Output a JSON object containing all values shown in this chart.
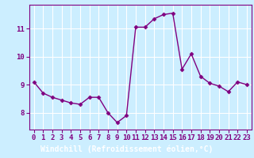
{
  "x": [
    0,
    1,
    2,
    3,
    4,
    5,
    6,
    7,
    8,
    9,
    10,
    11,
    12,
    13,
    14,
    15,
    16,
    17,
    18,
    19,
    20,
    21,
    22,
    23
  ],
  "y": [
    9.1,
    8.7,
    8.55,
    8.45,
    8.35,
    8.3,
    8.55,
    8.55,
    8.0,
    7.65,
    7.9,
    11.05,
    11.05,
    11.35,
    11.5,
    11.55,
    9.55,
    10.1,
    9.3,
    9.05,
    8.95,
    8.75,
    9.1,
    9.0
  ],
  "line_color": "#800080",
  "marker": "D",
  "marker_size": 2.5,
  "linewidth": 1.0,
  "xlabel": "Windchill (Refroidissement éolien,°C)",
  "xlim": [
    -0.5,
    23.5
  ],
  "ylim": [
    7.4,
    11.85
  ],
  "yticks": [
    8,
    9,
    10,
    11
  ],
  "xticks": [
    0,
    1,
    2,
    3,
    4,
    5,
    6,
    7,
    8,
    9,
    10,
    11,
    12,
    13,
    14,
    15,
    16,
    17,
    18,
    19,
    20,
    21,
    22,
    23
  ],
  "bg_color": "#cceeff",
  "grid_color": "#ffffff",
  "axis_label_color": "#800080",
  "xlabel_bg": "#7b68b0",
  "tick_label_fontsize": 6.5,
  "xlabel_fontsize": 7.0
}
